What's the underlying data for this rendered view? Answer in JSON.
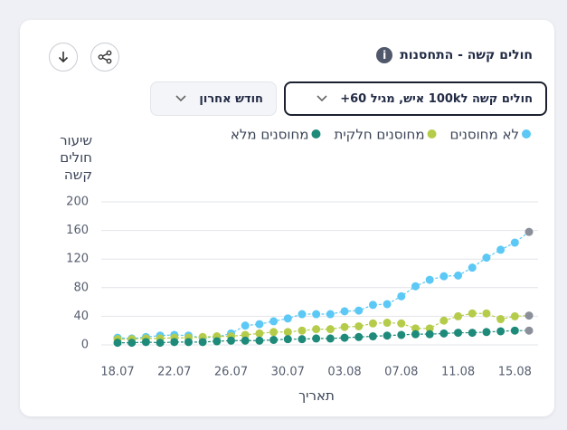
{
  "chart_data": {
    "type": "line",
    "title": "חולים קשה - התחסנות",
    "metric_dropdown": "חולים קשה ל100k איש, מגיל 60+",
    "period_dropdown": "חודש אחרון",
    "y_label": "שיעור חולים קשה",
    "x_label": "תאריך",
    "categories": [
      "18.07",
      null,
      null,
      null,
      "22.07",
      null,
      null,
      null,
      "26.07",
      null,
      null,
      null,
      "30.07",
      null,
      null,
      null,
      "03.08",
      null,
      null,
      null,
      "07.08",
      null,
      null,
      null,
      "11.08",
      null,
      null,
      null,
      "15.08",
      null
    ],
    "series": [
      {
        "name": "לא מחוסנים",
        "color": "#5bc8f5",
        "values": [
          10,
          9,
          11,
          13,
          14,
          13,
          10,
          11,
          16,
          27,
          29,
          33,
          37,
          43,
          43,
          43,
          47,
          48,
          56,
          57,
          68,
          82,
          91,
          96,
          97,
          108,
          122,
          133,
          143,
          158
        ]
      },
      {
        "name": "מחוסנים חלקית",
        "color": "#b5cc4a",
        "values": [
          8,
          8,
          9,
          9,
          10,
          10,
          11,
          12,
          12,
          14,
          16,
          18,
          18,
          20,
          22,
          22,
          25,
          26,
          30,
          31,
          30,
          23,
          23,
          34,
          40,
          44,
          44,
          36,
          40,
          41
        ]
      },
      {
        "name": "מחוסנים מלא",
        "color": "#1e8a7a",
        "values": [
          3,
          3,
          4,
          3,
          4,
          4,
          4,
          5,
          6,
          6,
          6,
          7,
          8,
          8,
          9,
          9,
          10,
          11,
          12,
          13,
          14,
          15,
          15,
          16,
          17,
          17,
          18,
          19,
          20,
          20
        ]
      }
    ],
    "last_point_color": "#8a8f99",
    "ylim": [
      0,
      200
    ],
    "yticks": [
      0,
      40,
      80,
      120,
      160,
      200
    ],
    "grid": true,
    "legend": "top"
  }
}
